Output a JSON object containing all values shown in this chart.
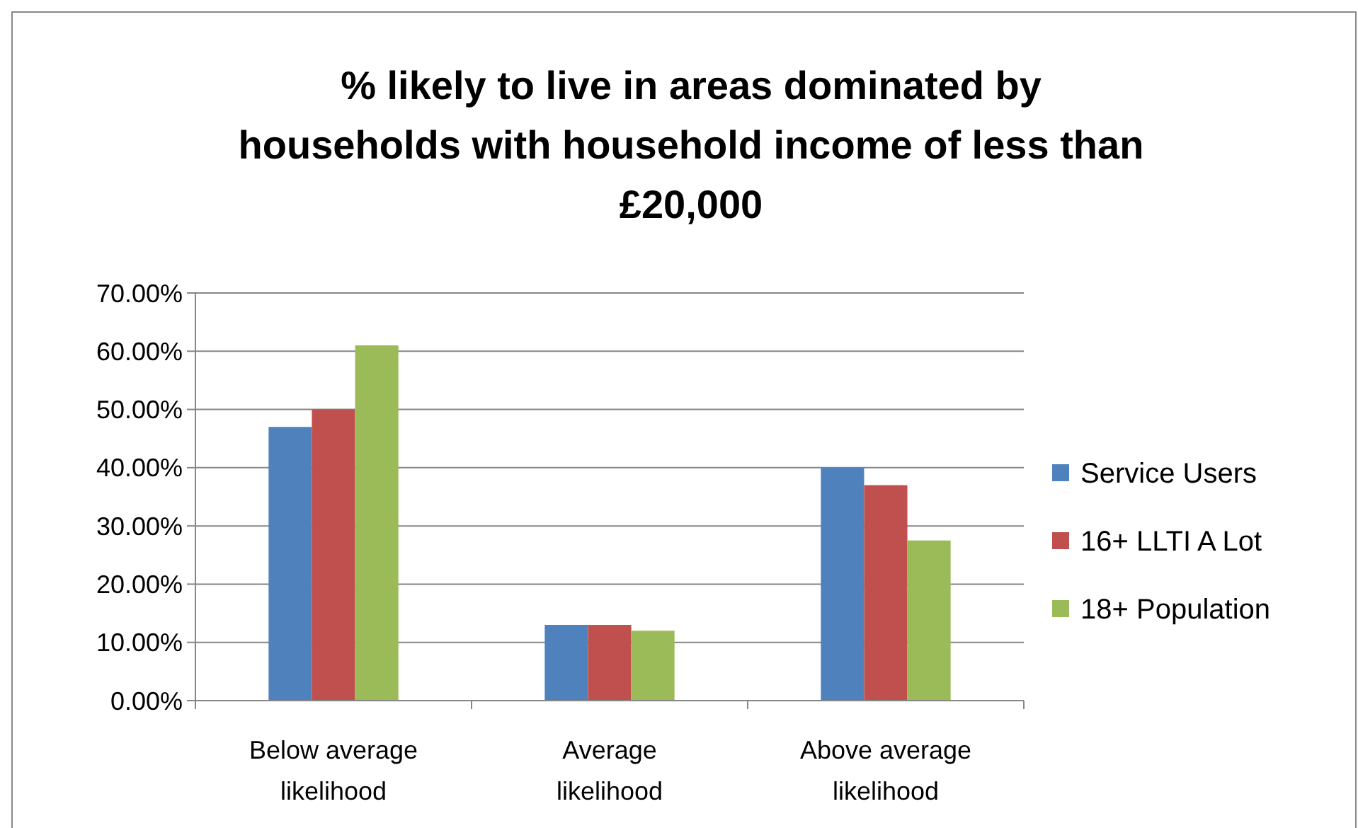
{
  "chart_data": {
    "type": "bar",
    "title": "% likely to live in areas dominated by households with household income of less than £20,000",
    "categories": [
      "Below average likelihood",
      "Average likelihood",
      "Above average likelihood"
    ],
    "series": [
      {
        "name": "Service Users",
        "color": "#4f81bd",
        "values": [
          47,
          13,
          40
        ]
      },
      {
        "name": "16+ LLTI A Lot",
        "color": "#c0504d",
        "values": [
          50,
          13,
          37
        ]
      },
      {
        "name": "18+ Population",
        "color": "#9bbb59",
        "values": [
          61,
          12,
          27.5
        ]
      }
    ],
    "ylim": [
      0,
      70
    ],
    "yticks": [
      {
        "value": 0,
        "label": "0.00%"
      },
      {
        "value": 10,
        "label": "10.00%"
      },
      {
        "value": 20,
        "label": "20.00%"
      },
      {
        "value": 30,
        "label": "30.00%"
      },
      {
        "value": 40,
        "label": "40.00%"
      },
      {
        "value": 50,
        "label": "50.00%"
      },
      {
        "value": 60,
        "label": "60.00%"
      },
      {
        "value": 70,
        "label": "70.00%"
      }
    ],
    "grid": "y",
    "legend": "right"
  }
}
